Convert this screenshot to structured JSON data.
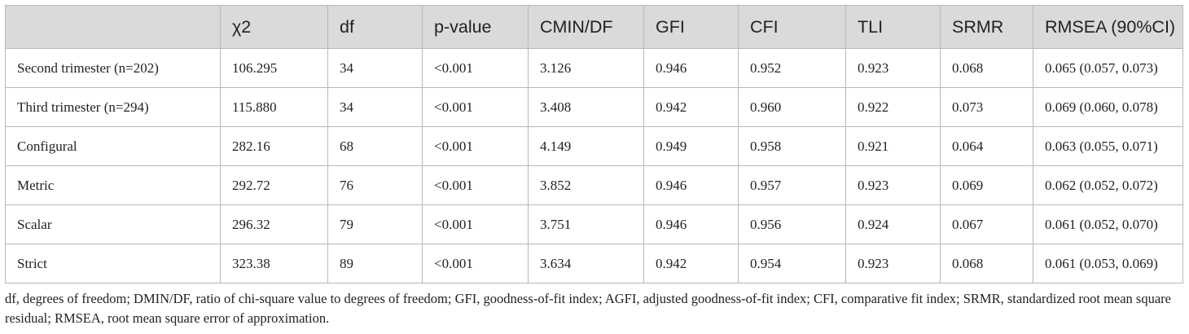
{
  "table": {
    "headers": [
      "",
      "χ2",
      "df",
      "p-value",
      "CMIN/DF",
      "GFI",
      "CFI",
      "TLI",
      "SRMR",
      "RMSEA (90%CI)"
    ],
    "rows": [
      [
        "Second trimester (n=202)",
        "106.295",
        "34",
        "<0.001",
        "3.126",
        "0.946",
        "0.952",
        "0.923",
        "0.068",
        "0.065 (0.057, 0.073)"
      ],
      [
        "Third trimester (n=294)",
        "115.880",
        "34",
        "<0.001",
        "3.408",
        "0.942",
        "0.960",
        "0.922",
        "0.073",
        "0.069 (0.060, 0.078)"
      ],
      [
        "Configural",
        "282.16",
        "68",
        "<0.001",
        "4.149",
        "0.949",
        "0.958",
        "0.921",
        "0.064",
        "0.063 (0.055, 0.071)"
      ],
      [
        "Metric",
        "292.72",
        "76",
        "<0.001",
        "3.852",
        "0.946",
        "0.957",
        "0.923",
        "0.069",
        "0.062 (0.052, 0.072)"
      ],
      [
        "Scalar",
        "296.32",
        "79",
        "<0.001",
        "3.751",
        "0.946",
        "0.956",
        "0.924",
        "0.067",
        "0.061 (0.052, 0.070)"
      ],
      [
        "Strict",
        "323.38",
        "89",
        "<0.001",
        "3.634",
        "0.942",
        "0.954",
        "0.923",
        "0.068",
        "0.061 (0.053, 0.069)"
      ]
    ]
  },
  "footnote": "df, degrees of freedom; DMIN/DF, ratio of chi-square value to degrees of freedom; GFI, goodness-of-fit index; AGFI, adjusted goodness-of-fit index; CFI, comparative fit index; SRMR, standardized root mean square residual; RMSEA, root mean square error of approximation."
}
